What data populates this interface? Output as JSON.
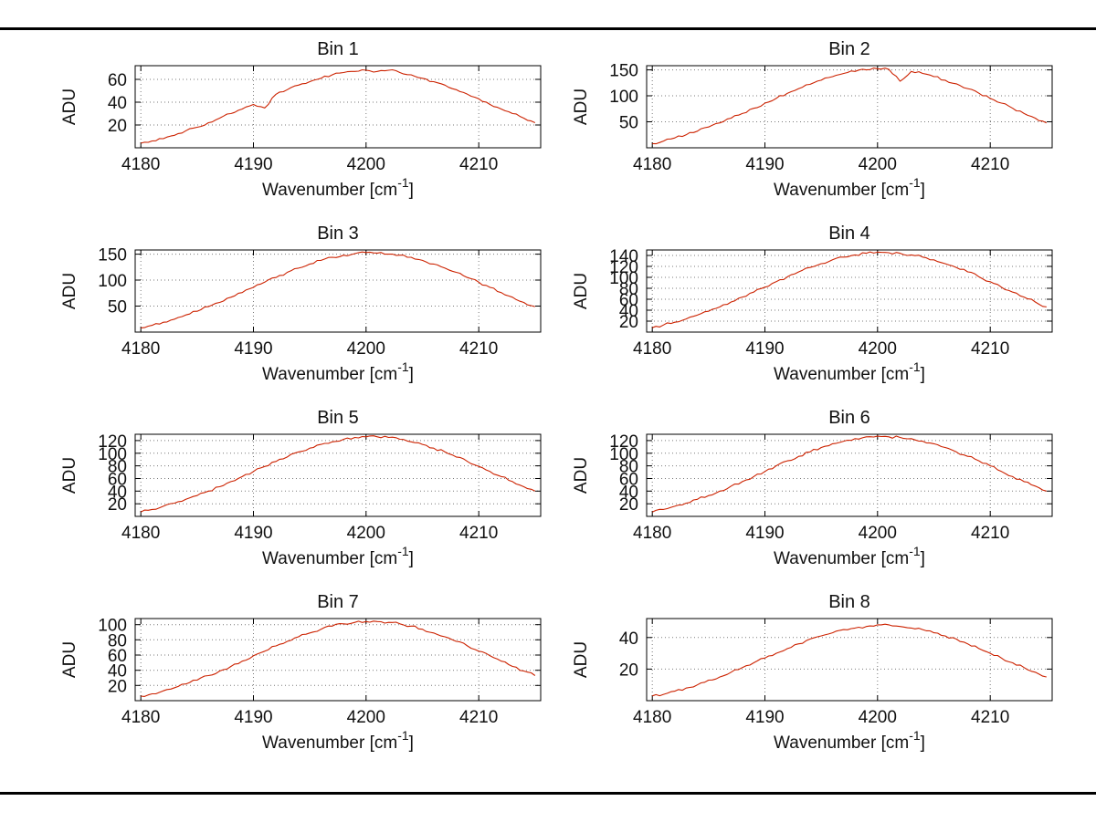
{
  "figure": {
    "background": "#ffffff",
    "top_border_color": "#000000",
    "bottom_border_color": "#000000"
  },
  "labels": {
    "ylabel": "ADU",
    "xlabel_pre": "Wavenumber [cm",
    "xlabel_sup": "-1",
    "xlabel_post": "]",
    "xlabel_full": "Wavenumber [cm-1]"
  },
  "chart_data": [
    {
      "type": "line",
      "title": "Bin 1",
      "xlabel": "Wavenumber [cm-1]",
      "ylabel": "ADU",
      "line_color": "#cc2200",
      "grid": true,
      "xlim": [
        4179.5,
        4215.5
      ],
      "ylim": [
        0,
        72
      ],
      "xticks": [
        4180,
        4190,
        4200,
        4210
      ],
      "yticks": [
        20,
        40,
        60
      ],
      "x_start": 4180,
      "x_step": 1,
      "values": [
        4,
        6,
        8,
        11,
        15,
        18,
        22,
        26,
        30,
        34,
        38,
        35,
        47,
        51,
        55,
        58,
        61,
        64,
        66,
        67,
        68,
        67,
        68,
        66,
        64,
        61,
        58,
        55,
        51,
        47,
        43,
        38,
        34,
        30,
        26,
        22
      ]
    },
    {
      "type": "line",
      "title": "Bin 2",
      "xlabel": "Wavenumber [cm-1]",
      "ylabel": "ADU",
      "line_color": "#cc2200",
      "grid": true,
      "xlim": [
        4179.5,
        4215.5
      ],
      "ylim": [
        0,
        158
      ],
      "xticks": [
        4180,
        4190,
        4200,
        4210
      ],
      "yticks": [
        50,
        100,
        150
      ],
      "x_start": 4180,
      "x_step": 1,
      "values": [
        8,
        13,
        19,
        25,
        32,
        40,
        48,
        57,
        66,
        76,
        86,
        95,
        105,
        114,
        122,
        130,
        137,
        143,
        147,
        150,
        152,
        151,
        128,
        147,
        143,
        137,
        130,
        123,
        114,
        105,
        95,
        86,
        76,
        66,
        57,
        48
      ]
    },
    {
      "type": "line",
      "title": "Bin 3",
      "xlabel": "Wavenumber [cm-1]",
      "ylabel": "ADU",
      "line_color": "#cc2200",
      "grid": true,
      "xlim": [
        4179.5,
        4215.5
      ],
      "ylim": [
        0,
        158
      ],
      "xticks": [
        4180,
        4190,
        4200,
        4210
      ],
      "yticks": [
        50,
        100,
        150
      ],
      "x_start": 4180,
      "x_step": 1,
      "values": [
        8,
        13,
        19,
        25,
        33,
        40,
        49,
        57,
        67,
        76,
        86,
        96,
        105,
        115,
        123,
        131,
        138,
        144,
        148,
        151,
        153,
        152,
        150,
        148,
        144,
        138,
        131,
        123,
        115,
        105,
        96,
        86,
        76,
        67,
        57,
        49
      ]
    },
    {
      "type": "line",
      "title": "Bin 4",
      "xlabel": "Wavenumber [cm-1]",
      "ylabel": "ADU",
      "line_color": "#cc2200",
      "grid": true,
      "xlim": [
        4179.5,
        4215.5
      ],
      "ylim": [
        0,
        150
      ],
      "xticks": [
        4180,
        4190,
        4200,
        4210
      ],
      "yticks": [
        20,
        40,
        60,
        80,
        100,
        120,
        140
      ],
      "x_start": 4180,
      "x_step": 1,
      "values": [
        8,
        13,
        18,
        24,
        31,
        38,
        46,
        55,
        64,
        73,
        82,
        92,
        101,
        110,
        118,
        125,
        132,
        137,
        141,
        144,
        146,
        145,
        144,
        141,
        137,
        132,
        125,
        118,
        110,
        101,
        92,
        82,
        73,
        64,
        55,
        46
      ]
    },
    {
      "type": "line",
      "title": "Bin 5",
      "xlabel": "Wavenumber [cm-1]",
      "ylabel": "ADU",
      "line_color": "#cc2200",
      "grid": true,
      "xlim": [
        4179.5,
        4215.5
      ],
      "ylim": [
        0,
        130
      ],
      "xticks": [
        4180,
        4190,
        4200,
        4210
      ],
      "yticks": [
        20,
        40,
        60,
        80,
        100,
        120
      ],
      "x_start": 4180,
      "x_step": 1,
      "values": [
        7,
        11,
        16,
        21,
        27,
        33,
        40,
        47,
        55,
        63,
        71,
        79,
        87,
        94,
        102,
        108,
        114,
        118,
        122,
        125,
        126,
        126,
        125,
        122,
        118,
        114,
        108,
        102,
        94,
        87,
        79,
        71,
        63,
        55,
        47,
        40
      ]
    },
    {
      "type": "line",
      "title": "Bin 6",
      "xlabel": "Wavenumber [cm-1]",
      "ylabel": "ADU",
      "line_color": "#cc2200",
      "grid": true,
      "xlim": [
        4179.5,
        4215.5
      ],
      "ylim": [
        0,
        130
      ],
      "xticks": [
        4180,
        4190,
        4200,
        4210
      ],
      "yticks": [
        20,
        40,
        60,
        80,
        100,
        120
      ],
      "x_start": 4180,
      "x_step": 1,
      "values": [
        7,
        11,
        16,
        21,
        27,
        33,
        40,
        48,
        55,
        63,
        71,
        80,
        88,
        95,
        102,
        109,
        115,
        119,
        123,
        126,
        127,
        126,
        125,
        123,
        119,
        115,
        109,
        102,
        95,
        88,
        80,
        71,
        63,
        55,
        48,
        40
      ]
    },
    {
      "type": "line",
      "title": "Bin 7",
      "xlabel": "Wavenumber [cm-1]",
      "ylabel": "ADU",
      "line_color": "#cc2200",
      "grid": true,
      "xlim": [
        4179.5,
        4215.5
      ],
      "ylim": [
        0,
        108
      ],
      "xticks": [
        4180,
        4190,
        4200,
        4210
      ],
      "yticks": [
        20,
        40,
        60,
        80,
        100
      ],
      "x_start": 4180,
      "x_step": 1,
      "values": [
        6,
        9,
        13,
        17,
        22,
        27,
        33,
        39,
        45,
        52,
        59,
        65,
        72,
        78,
        84,
        89,
        94,
        98,
        101,
        103,
        104,
        104,
        103,
        101,
        98,
        94,
        89,
        84,
        78,
        72,
        65,
        59,
        52,
        45,
        39,
        33
      ]
    },
    {
      "type": "line",
      "title": "Bin 8",
      "xlabel": "Wavenumber [cm-1]",
      "ylabel": "ADU",
      "line_color": "#cc2200",
      "grid": true,
      "xlim": [
        4179.5,
        4215.5
      ],
      "ylim": [
        0,
        52
      ],
      "xticks": [
        4180,
        4190,
        4200,
        4210
      ],
      "yticks": [
        20,
        40
      ],
      "x_start": 4180,
      "x_step": 1,
      "values": [
        3,
        4,
        6,
        8,
        10,
        13,
        15,
        18,
        21,
        24,
        27,
        30,
        33,
        36,
        39,
        41,
        43,
        45,
        46,
        47,
        48,
        48,
        47,
        46,
        45,
        43,
        41,
        39,
        36,
        33,
        30,
        27,
        24,
        21,
        18,
        15
      ]
    }
  ]
}
